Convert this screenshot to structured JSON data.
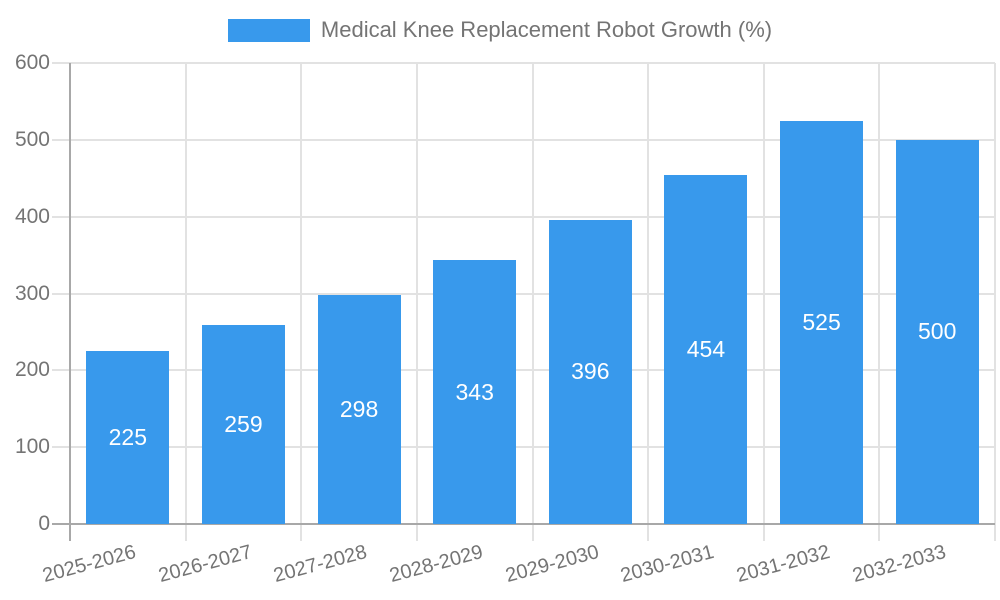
{
  "chart_data": {
    "type": "bar",
    "title": "Medical Knee Replacement Robot Growth (%)",
    "legend": {
      "position": "top",
      "entries": [
        "Medical Knee Replacement Robot Growth (%)"
      ]
    },
    "categories": [
      "2025-2026",
      "2026-2027",
      "2027-2028",
      "2028-2029",
      "2029-2030",
      "2030-2031",
      "2031-2032",
      "2032-2033"
    ],
    "series": [
      {
        "name": "Medical Knee Replacement Robot Growth (%)",
        "values": [
          225,
          259,
          298,
          343,
          396,
          454,
          525,
          500
        ]
      }
    ],
    "values": [
      225,
      259,
      298,
      343,
      396,
      454,
      525,
      500
    ],
    "xlabel": "",
    "ylabel": "",
    "ylim": [
      0,
      600
    ],
    "yticks": [
      0,
      100,
      200,
      300,
      400,
      500,
      600
    ],
    "xtick_rotation_deg": -15,
    "grid": true,
    "bar_value_labels": {
      "visible": true,
      "position": "center-inside"
    },
    "colors": {
      "bar": "#3899EC",
      "grid": "#E2E2E2",
      "axis": "#A8A8A8",
      "text": "#747474",
      "bar_label": "#FFFFFF",
      "background": "#FFFFFF"
    }
  }
}
